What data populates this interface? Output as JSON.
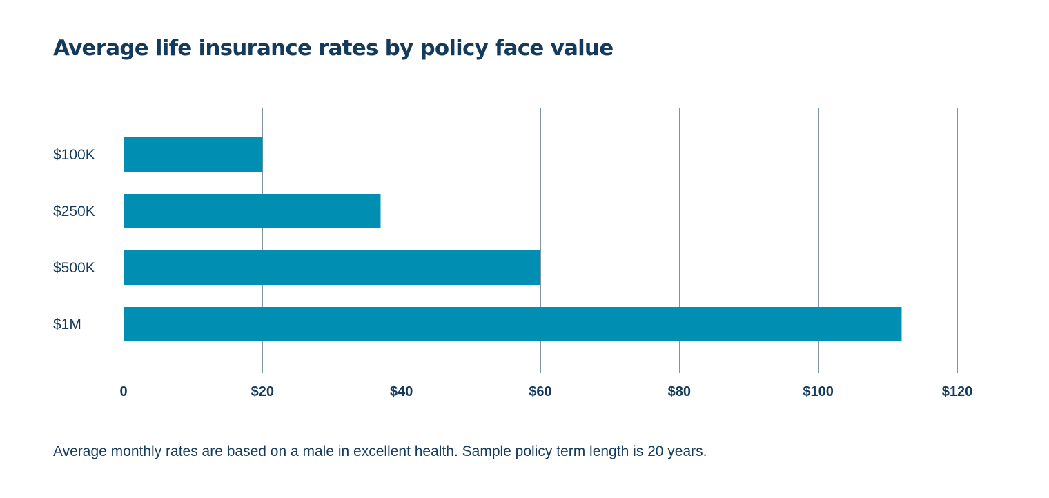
{
  "chart_data": {
    "type": "bar",
    "orientation": "horizontal",
    "title": "Average life insurance rates by policy face value",
    "categories": [
      "$100K",
      "$250K",
      "$500K",
      "$1M"
    ],
    "values": [
      20,
      37,
      60,
      112
    ],
    "xlim": [
      0,
      120
    ],
    "x_ticks": [
      0,
      20,
      40,
      60,
      80,
      100,
      120
    ],
    "x_tick_labels": [
      "0",
      "$20",
      "$40",
      "$60",
      "$80",
      "$100",
      "$120"
    ],
    "xlabel": "",
    "ylabel": "",
    "grid": "vertical",
    "legend": "none",
    "bar_color": "#008fb3",
    "text_color": "#143b5c",
    "grid_color": "#7f93a4"
  },
  "footnote": "Average monthly rates are based on a male in excellent health. Sample policy term length is 20 years."
}
